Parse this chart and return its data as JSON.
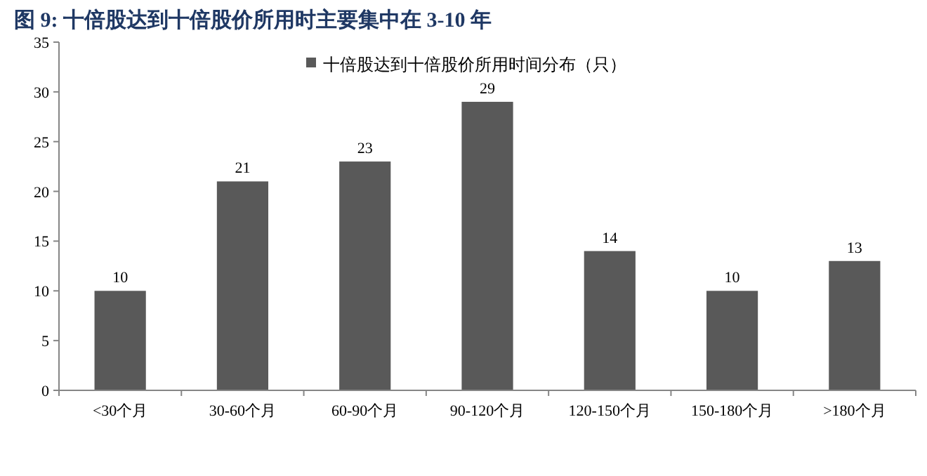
{
  "chart_data": {
    "type": "bar",
    "title": "图 9:  十倍股达到十倍股价所用时主要集中在 3-10 年",
    "categories": [
      "<30个月",
      "30-60个月",
      "60-90个月",
      "90-120个月",
      "120-150个月",
      "150-180个月",
      ">180个月"
    ],
    "series": [
      {
        "name": "十倍股达到十倍股价所用时间分布（只）",
        "color": "#595959",
        "values": [
          10,
          21,
          23,
          29,
          14,
          10,
          13
        ]
      }
    ],
    "ylim": [
      0,
      35
    ],
    "yticks": [
      0,
      5,
      10,
      15,
      20,
      25,
      30,
      35
    ],
    "data_labels": true,
    "legend": "top",
    "grid": false
  }
}
